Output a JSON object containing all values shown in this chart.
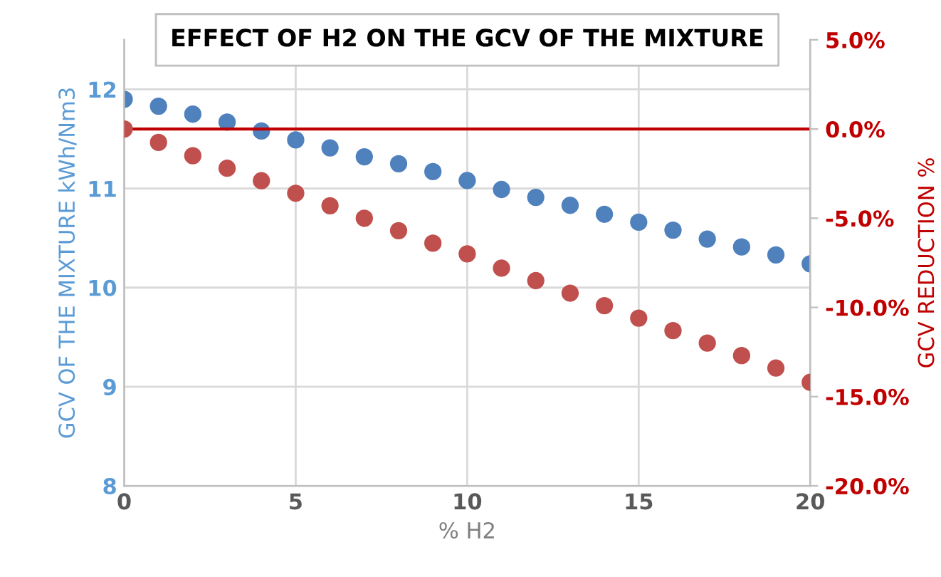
{
  "chart_data": {
    "type": "scatter",
    "title": "EFFECT OF H2 ON THE GCV OF THE MIXTURE",
    "xlabel": "% H2",
    "ylabel": "GCV OF THE MIXTURE kWh/Nm3",
    "y2label": "GCV REDUCTION %",
    "x": [
      0,
      1,
      2,
      3,
      4,
      5,
      6,
      7,
      8,
      9,
      10,
      11,
      12,
      13,
      14,
      15,
      16,
      17,
      18,
      19,
      20
    ],
    "series": [
      {
        "color": "#4f81bd",
        "values": [
          11.9,
          11.83,
          11.75,
          11.67,
          11.58,
          11.49,
          11.41,
          11.32,
          11.25,
          11.17,
          11.08,
          10.99,
          10.91,
          10.83,
          10.74,
          10.66,
          10.58,
          10.49,
          10.41,
          10.33,
          10.24
        ]
      },
      {
        "color": "#c0504d",
        "axis": "y2",
        "values": [
          0.0,
          -0.75,
          -1.5,
          -2.2,
          -2.9,
          -3.6,
          -4.3,
          -5.0,
          -5.7,
          -6.4,
          -7.0,
          -7.8,
          -8.5,
          -9.2,
          -9.9,
          -10.6,
          -11.3,
          -12.0,
          -12.7,
          -13.4,
          -14.2
        ]
      }
    ],
    "xlim": [
      0,
      20
    ],
    "xticks": [
      0,
      5,
      10,
      15,
      20
    ],
    "ylim": [
      8,
      12.5
    ],
    "yticks": [
      8,
      9,
      10,
      11,
      12
    ],
    "y2lim": [
      -20,
      5
    ],
    "y2ticks": [
      {
        "value": -20,
        "label": "-20.0%"
      },
      {
        "value": -15,
        "label": "-15.0%"
      },
      {
        "value": -10,
        "label": "-10.0%"
      },
      {
        "value": -5,
        "label": "-5.0%"
      },
      {
        "value": 0,
        "label": "0.0%"
      },
      {
        "value": 5,
        "label": "5.0%"
      }
    ],
    "ref_lines": [
      {
        "axis": "y2",
        "value": 0,
        "color": "#c00000"
      }
    ],
    "grid": true,
    "marker": "circle",
    "legend": false
  }
}
